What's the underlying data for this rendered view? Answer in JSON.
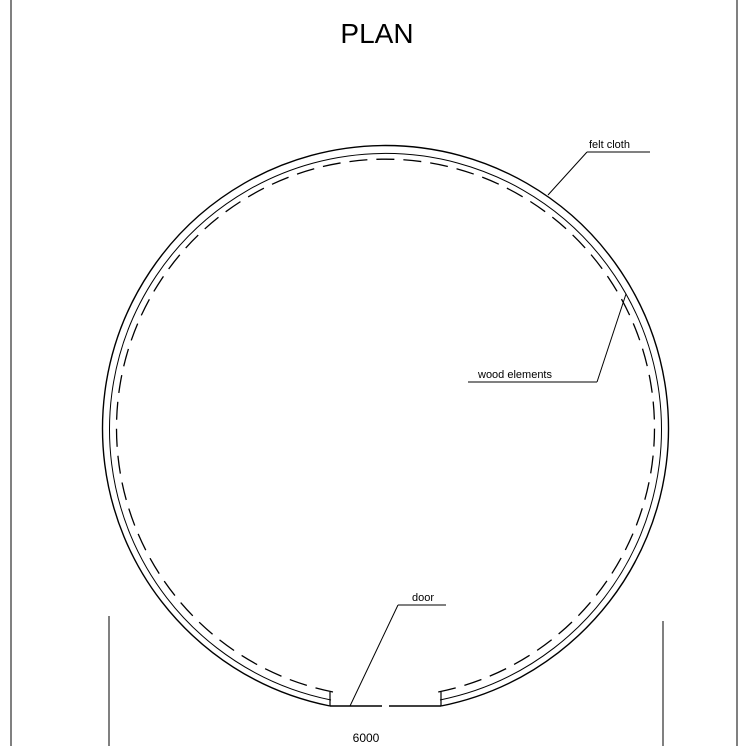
{
  "title": "PLAN",
  "labels": {
    "felt_cloth": "felt  cloth",
    "wood_elements": "wood  elements",
    "door": "door"
  },
  "dimension": {
    "overall_diameter": "6000"
  },
  "colors": {
    "ink": "#000000",
    "paper": "#ffffff"
  }
}
